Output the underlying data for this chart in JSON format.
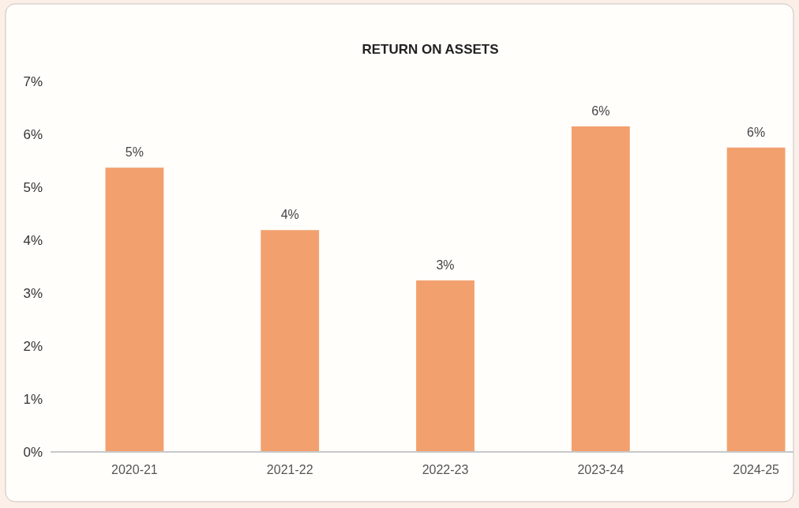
{
  "chart_data": {
    "type": "bar",
    "title": "RETURN ON ASSETS",
    "categories": [
      "2020-21",
      "2021-22",
      "2022-23",
      "2023-24",
      "2024-25"
    ],
    "values": [
      5.37,
      4.19,
      3.24,
      6.15,
      5.75
    ],
    "value_labels": [
      "5%",
      "4%",
      "3%",
      "6%",
      "6%"
    ],
    "color": "#f2a06e",
    "ylim": [
      0,
      7
    ],
    "yticks": [
      {
        "value": 0,
        "label": "0%"
      },
      {
        "value": 1,
        "label": "1%"
      },
      {
        "value": 2,
        "label": "2%"
      },
      {
        "value": 3,
        "label": "3%"
      },
      {
        "value": 4,
        "label": "4%"
      },
      {
        "value": 5,
        "label": "5%"
      },
      {
        "value": 6,
        "label": "6%"
      },
      {
        "value": 7,
        "label": "7%"
      }
    ],
    "grid": false
  }
}
